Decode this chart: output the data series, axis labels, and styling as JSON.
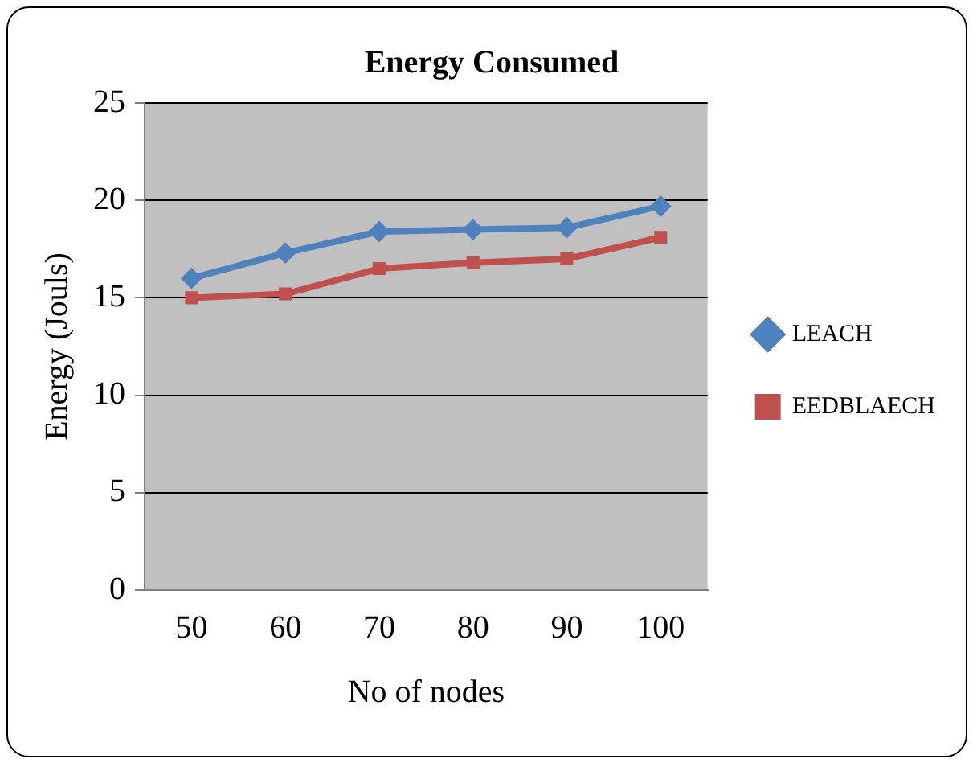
{
  "chart_data": {
    "type": "line",
    "title": "Energy Consumed",
    "xlabel": "No of nodes",
    "ylabel": "Energy (Jouls)",
    "categories": [
      "50",
      "60",
      "70",
      "80",
      "90",
      "100"
    ],
    "series": [
      {
        "name": "LEACH",
        "color": "#4f81bd",
        "marker": "diamond",
        "values": [
          16.0,
          17.3,
          18.4,
          18.5,
          18.6,
          19.7
        ]
      },
      {
        "name": "EEDBLAECH",
        "color": "#c0504d",
        "marker": "square",
        "values": [
          15.0,
          15.2,
          16.5,
          16.8,
          17.0,
          18.1
        ]
      }
    ],
    "ylim": [
      0,
      25
    ],
    "yticks": [
      0,
      5,
      10,
      15,
      20,
      25
    ],
    "grid": "y",
    "legend": "right",
    "line_style": "solid"
  }
}
